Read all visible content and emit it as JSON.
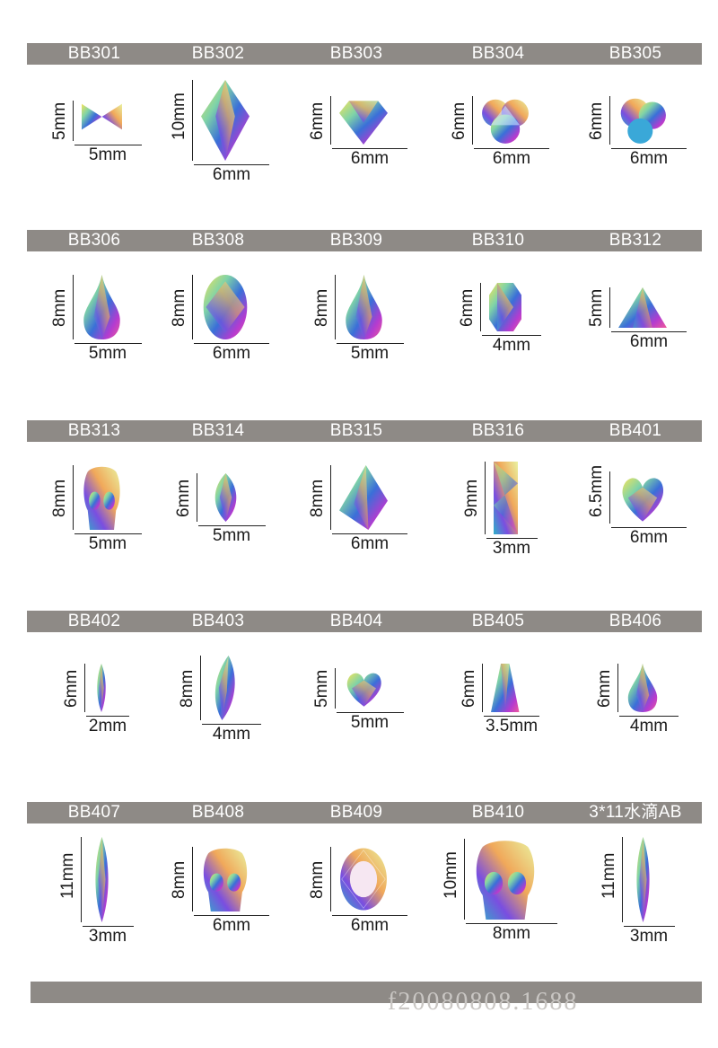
{
  "rows": [
    {
      "items": [
        {
          "code": "BB301",
          "height": "5mm",
          "width": "5mm",
          "shape": "bow"
        },
        {
          "code": "BB302",
          "height": "10mm",
          "width": "6mm",
          "shape": "rhombus"
        },
        {
          "code": "BB303",
          "height": "6mm",
          "width": "6mm",
          "shape": "diamond"
        },
        {
          "code": "BB304",
          "height": "6mm",
          "width": "6mm",
          "shape": "flower"
        },
        {
          "code": "BB305",
          "height": "6mm",
          "width": "6mm",
          "shape": "trefoil"
        }
      ]
    },
    {
      "items": [
        {
          "code": "BB306",
          "height": "8mm",
          "width": "5mm",
          "shape": "drop"
        },
        {
          "code": "BB308",
          "height": "8mm",
          "width": "6mm",
          "shape": "oval"
        },
        {
          "code": "BB309",
          "height": "8mm",
          "width": "5mm",
          "shape": "drop"
        },
        {
          "code": "BB310",
          "height": "6mm",
          "width": "4mm",
          "shape": "octagon"
        },
        {
          "code": "BB312",
          "height": "5mm",
          "width": "6mm",
          "shape": "triangle"
        }
      ]
    },
    {
      "items": [
        {
          "code": "BB313",
          "height": "8mm",
          "width": "5mm",
          "shape": "skull"
        },
        {
          "code": "BB314",
          "height": "6mm",
          "width": "5mm",
          "shape": "navette"
        },
        {
          "code": "BB315",
          "height": "8mm",
          "width": "6mm",
          "shape": "kite"
        },
        {
          "code": "BB316",
          "height": "9mm",
          "width": "3mm",
          "shape": "baguette"
        },
        {
          "code": "BB401",
          "height": "6.5mm",
          "width": "6mm",
          "shape": "heart"
        }
      ]
    },
    {
      "items": [
        {
          "code": "BB402",
          "height": "6mm",
          "width": "2mm",
          "shape": "navette"
        },
        {
          "code": "BB403",
          "height": "8mm",
          "width": "4mm",
          "shape": "leaf"
        },
        {
          "code": "BB404",
          "height": "5mm",
          "width": "5mm",
          "shape": "heart"
        },
        {
          "code": "BB405",
          "height": "6mm",
          "width": "3.5mm",
          "shape": "trapezoid"
        },
        {
          "code": "BB406",
          "height": "6mm",
          "width": "4mm",
          "shape": "drop"
        }
      ]
    },
    {
      "items": [
        {
          "code": "BB407",
          "height": "11mm",
          "width": "3mm",
          "shape": "navette"
        },
        {
          "code": "BB408",
          "height": "8mm",
          "width": "6mm",
          "shape": "skull"
        },
        {
          "code": "BB409",
          "height": "8mm",
          "width": "6mm",
          "shape": "round"
        },
        {
          "code": "BB410",
          "height": "10mm",
          "width": "8mm",
          "shape": "skull"
        },
        {
          "code": "3*11水滴AB",
          "height": "11mm",
          "width": "3mm",
          "shape": "navette"
        }
      ]
    }
  ],
  "watermark": "f20080808.1688",
  "colors": {
    "band": "#8e8a86",
    "text": "#1a1a1a",
    "band_text": "#ffffff"
  }
}
